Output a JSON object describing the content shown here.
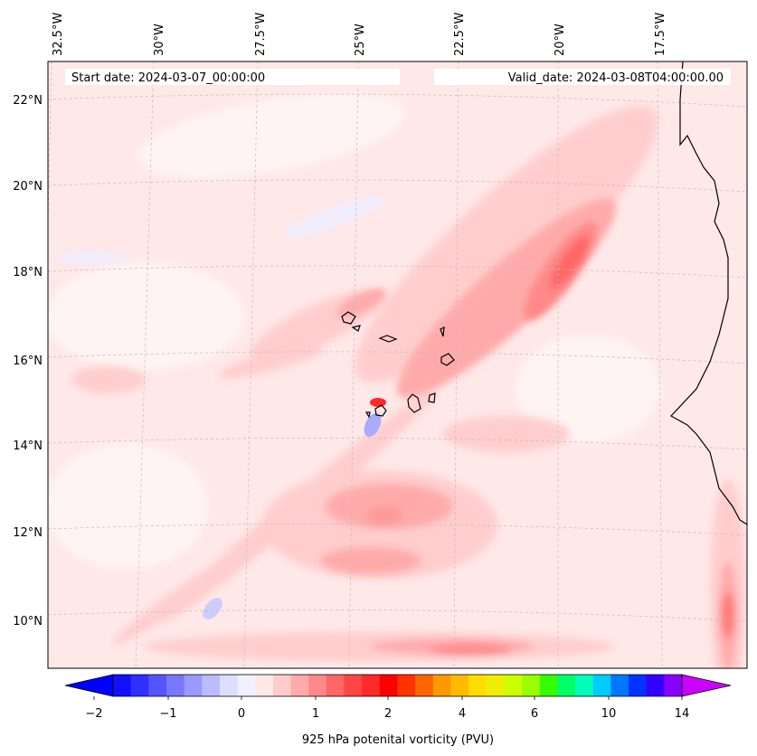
{
  "map": {
    "start_date_label": "Start date: 2024-03-07_00:00:00",
    "valid_date_label": "Valid_date: 2024-03-08T04:00:00.00",
    "lon_ticks": [
      "32.5°W",
      "30°W",
      "27.5°W",
      "25°W",
      "22.5°W",
      "20°W",
      "17.5°W"
    ],
    "lat_ticks": [
      "22°N",
      "20°N",
      "18°N",
      "16°N",
      "14°N",
      "12°N",
      "10°N"
    ],
    "background_color": "#ffe8e8",
    "gridline_color": "#bdbdbd",
    "coast_color": "#000000"
  },
  "colorbar": {
    "label": "925 hPa potenital vorticity (PVU)",
    "tick_labels": [
      "−2",
      "−1",
      "0",
      "1",
      "2",
      "4",
      "6",
      "10",
      "14"
    ],
    "colors": [
      "#1010ff",
      "#3030ff",
      "#5555ff",
      "#7777ff",
      "#9999ff",
      "#bbbbff",
      "#ddddff",
      "#f0f0ff",
      "#ffe8e8",
      "#ffcccc",
      "#ffaaaa",
      "#ff8888",
      "#ff6666",
      "#ff4545",
      "#ff2a2a",
      "#ff0000",
      "#ff3300",
      "#ff6600",
      "#ff9900",
      "#ffbb00",
      "#ffdd00",
      "#eeee00",
      "#ccff00",
      "#99ff00",
      "#33ff00",
      "#00ff66",
      "#00ffbb",
      "#00ccff",
      "#0077ff",
      "#0033ff",
      "#3300ff",
      "#8800ff"
    ],
    "under_color": "#0000ff",
    "over_color": "#cc00ff"
  }
}
